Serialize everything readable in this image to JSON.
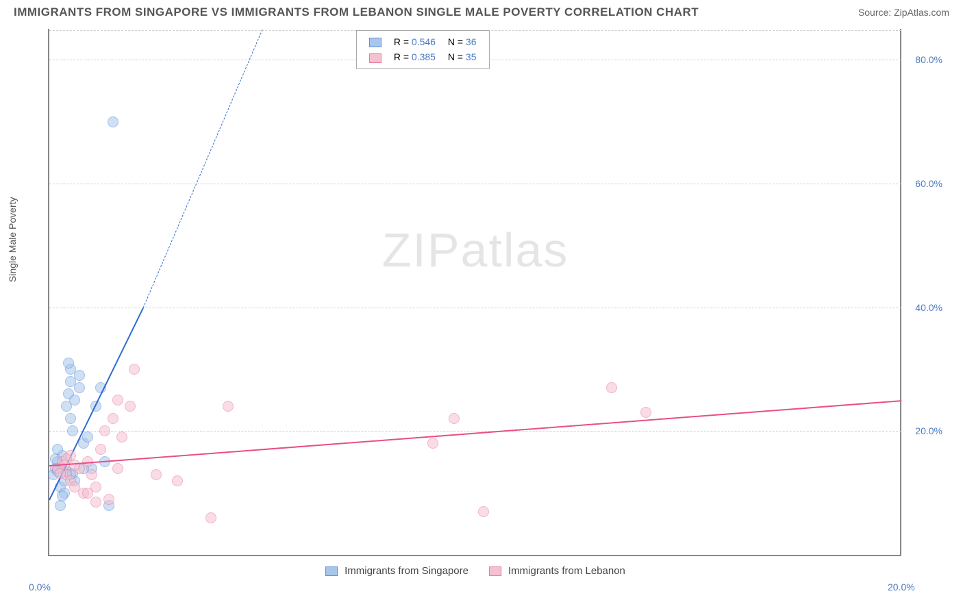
{
  "title": "IMMIGRANTS FROM SINGAPORE VS IMMIGRANTS FROM LEBANON SINGLE MALE POVERTY CORRELATION CHART",
  "source": "Source: ZipAtlas.com",
  "y_label": "Single Male Poverty",
  "watermark_bold": "ZIP",
  "watermark_thin": "atlas",
  "chart": {
    "type": "scatter",
    "xlim": [
      0,
      20
    ],
    "ylim": [
      0,
      85
    ],
    "y_ticks": [
      20,
      40,
      60,
      80
    ],
    "y_tick_labels": [
      "20.0%",
      "40.0%",
      "60.0%",
      "80.0%"
    ],
    "x_ticks": [
      0,
      20
    ],
    "x_tick_labels": [
      "0.0%",
      "20.0%"
    ],
    "grid_color": "#d0d0d0",
    "axis_color": "#888888",
    "background_color": "#ffffff",
    "marker_radius": 8,
    "marker_opacity": 0.55,
    "series": [
      {
        "key": "singapore",
        "label": "Immigrants from Singapore",
        "color_fill": "#a8c6ec",
        "color_stroke": "#5b8fd6",
        "trend_color": "#2e6bd1",
        "trend": {
          "x1": 0,
          "y1": 9,
          "x2_solid": 2.2,
          "y2_solid": 40,
          "x2_dash": 5.0,
          "y2_dash": 85
        },
        "R": "0.546",
        "N": "36",
        "points": [
          [
            0.1,
            13
          ],
          [
            0.15,
            14
          ],
          [
            0.2,
            13.5
          ],
          [
            0.2,
            15
          ],
          [
            0.25,
            11
          ],
          [
            0.3,
            16
          ],
          [
            0.3,
            14
          ],
          [
            0.35,
            12
          ],
          [
            0.4,
            24
          ],
          [
            0.45,
            26
          ],
          [
            0.5,
            28
          ],
          [
            0.5,
            30
          ],
          [
            0.5,
            22
          ],
          [
            0.55,
            20
          ],
          [
            0.6,
            25
          ],
          [
            0.7,
            27
          ],
          [
            0.7,
            29
          ],
          [
            0.8,
            18
          ],
          [
            0.9,
            19
          ],
          [
            1.0,
            14
          ],
          [
            1.1,
            24
          ],
          [
            1.2,
            27
          ],
          [
            1.3,
            15
          ],
          [
            1.4,
            8
          ],
          [
            0.25,
            8
          ],
          [
            0.35,
            10
          ],
          [
            0.6,
            12
          ],
          [
            0.15,
            15.5
          ],
          [
            0.2,
            17
          ],
          [
            0.5,
            13
          ],
          [
            0.45,
            31
          ],
          [
            0.8,
            14
          ],
          [
            1.5,
            70
          ],
          [
            0.4,
            13.5
          ],
          [
            0.3,
            9.5
          ],
          [
            0.55,
            13.2
          ]
        ]
      },
      {
        "key": "lebanon",
        "label": "Immigrants from Lebanon",
        "color_fill": "#f5c0cf",
        "color_stroke": "#e77aa0",
        "trend_color": "#e94e87",
        "trend": {
          "x1": 0,
          "y1": 14.5,
          "x2_solid": 20,
          "y2_solid": 25,
          "x2_dash": 20,
          "y2_dash": 25
        },
        "R": "0.385",
        "N": "35",
        "points": [
          [
            0.2,
            14
          ],
          [
            0.3,
            15
          ],
          [
            0.4,
            13
          ],
          [
            0.5,
            12
          ],
          [
            0.5,
            16
          ],
          [
            0.6,
            11
          ],
          [
            0.7,
            14
          ],
          [
            0.8,
            10
          ],
          [
            0.9,
            15
          ],
          [
            1.0,
            13
          ],
          [
            1.1,
            11
          ],
          [
            1.2,
            17
          ],
          [
            1.3,
            20
          ],
          [
            1.4,
            9
          ],
          [
            1.5,
            22
          ],
          [
            1.6,
            14
          ],
          [
            1.7,
            19
          ],
          [
            2.0,
            30
          ],
          [
            1.9,
            24
          ],
          [
            2.5,
            13
          ],
          [
            3.0,
            12
          ],
          [
            3.8,
            6
          ],
          [
            4.2,
            24
          ],
          [
            9.0,
            18
          ],
          [
            9.5,
            22
          ],
          [
            10.2,
            7
          ],
          [
            14.0,
            23
          ],
          [
            13.2,
            27
          ],
          [
            0.6,
            14.5
          ],
          [
            0.4,
            15.5
          ],
          [
            0.9,
            10
          ],
          [
            1.1,
            8.5
          ],
          [
            0.35,
            14.5
          ],
          [
            1.6,
            25
          ],
          [
            0.25,
            13.2
          ]
        ]
      }
    ]
  },
  "legend_stats": {
    "r_label": "R =",
    "n_label": "N ="
  }
}
